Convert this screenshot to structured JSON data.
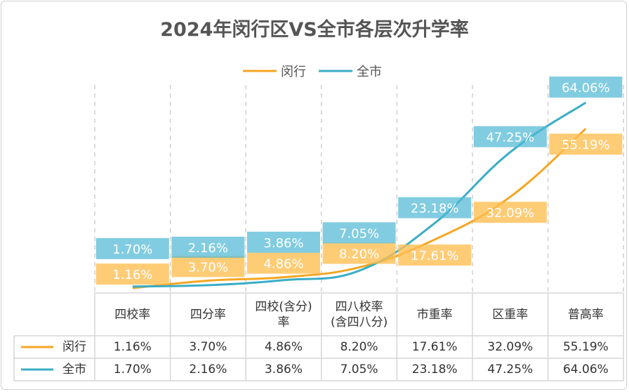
{
  "chart_data": {
    "type": "line",
    "title": "2024年闵行区VS全市各层次升学率",
    "categories": [
      "四校率",
      "四分率",
      "四校(含分)\n率",
      "四八校率\n(含四八分)",
      "市重率",
      "区重率",
      "普高率"
    ],
    "series": [
      {
        "name": "闵行",
        "color": "#F5A623",
        "values": [
          1.16,
          3.7,
          4.86,
          8.2,
          17.61,
          32.09,
          55.19
        ],
        "labels": [
          "1.16%",
          "3.70%",
          "4.86%",
          "8.20%",
          "17.61%",
          "32.09%",
          "55.19%"
        ]
      },
      {
        "name": "全市",
        "color": "#3AADC6",
        "values": [
          1.7,
          2.16,
          3.86,
          7.05,
          23.18,
          47.25,
          64.06
        ],
        "labels": [
          "1.70%",
          "2.16%",
          "3.86%",
          "7.05%",
          "23.18%",
          "47.25%",
          "64.06%"
        ]
      }
    ],
    "ylim": [
      0,
      70
    ],
    "grid": "vertical-dashed",
    "legend": "top-center",
    "data_table": true
  }
}
